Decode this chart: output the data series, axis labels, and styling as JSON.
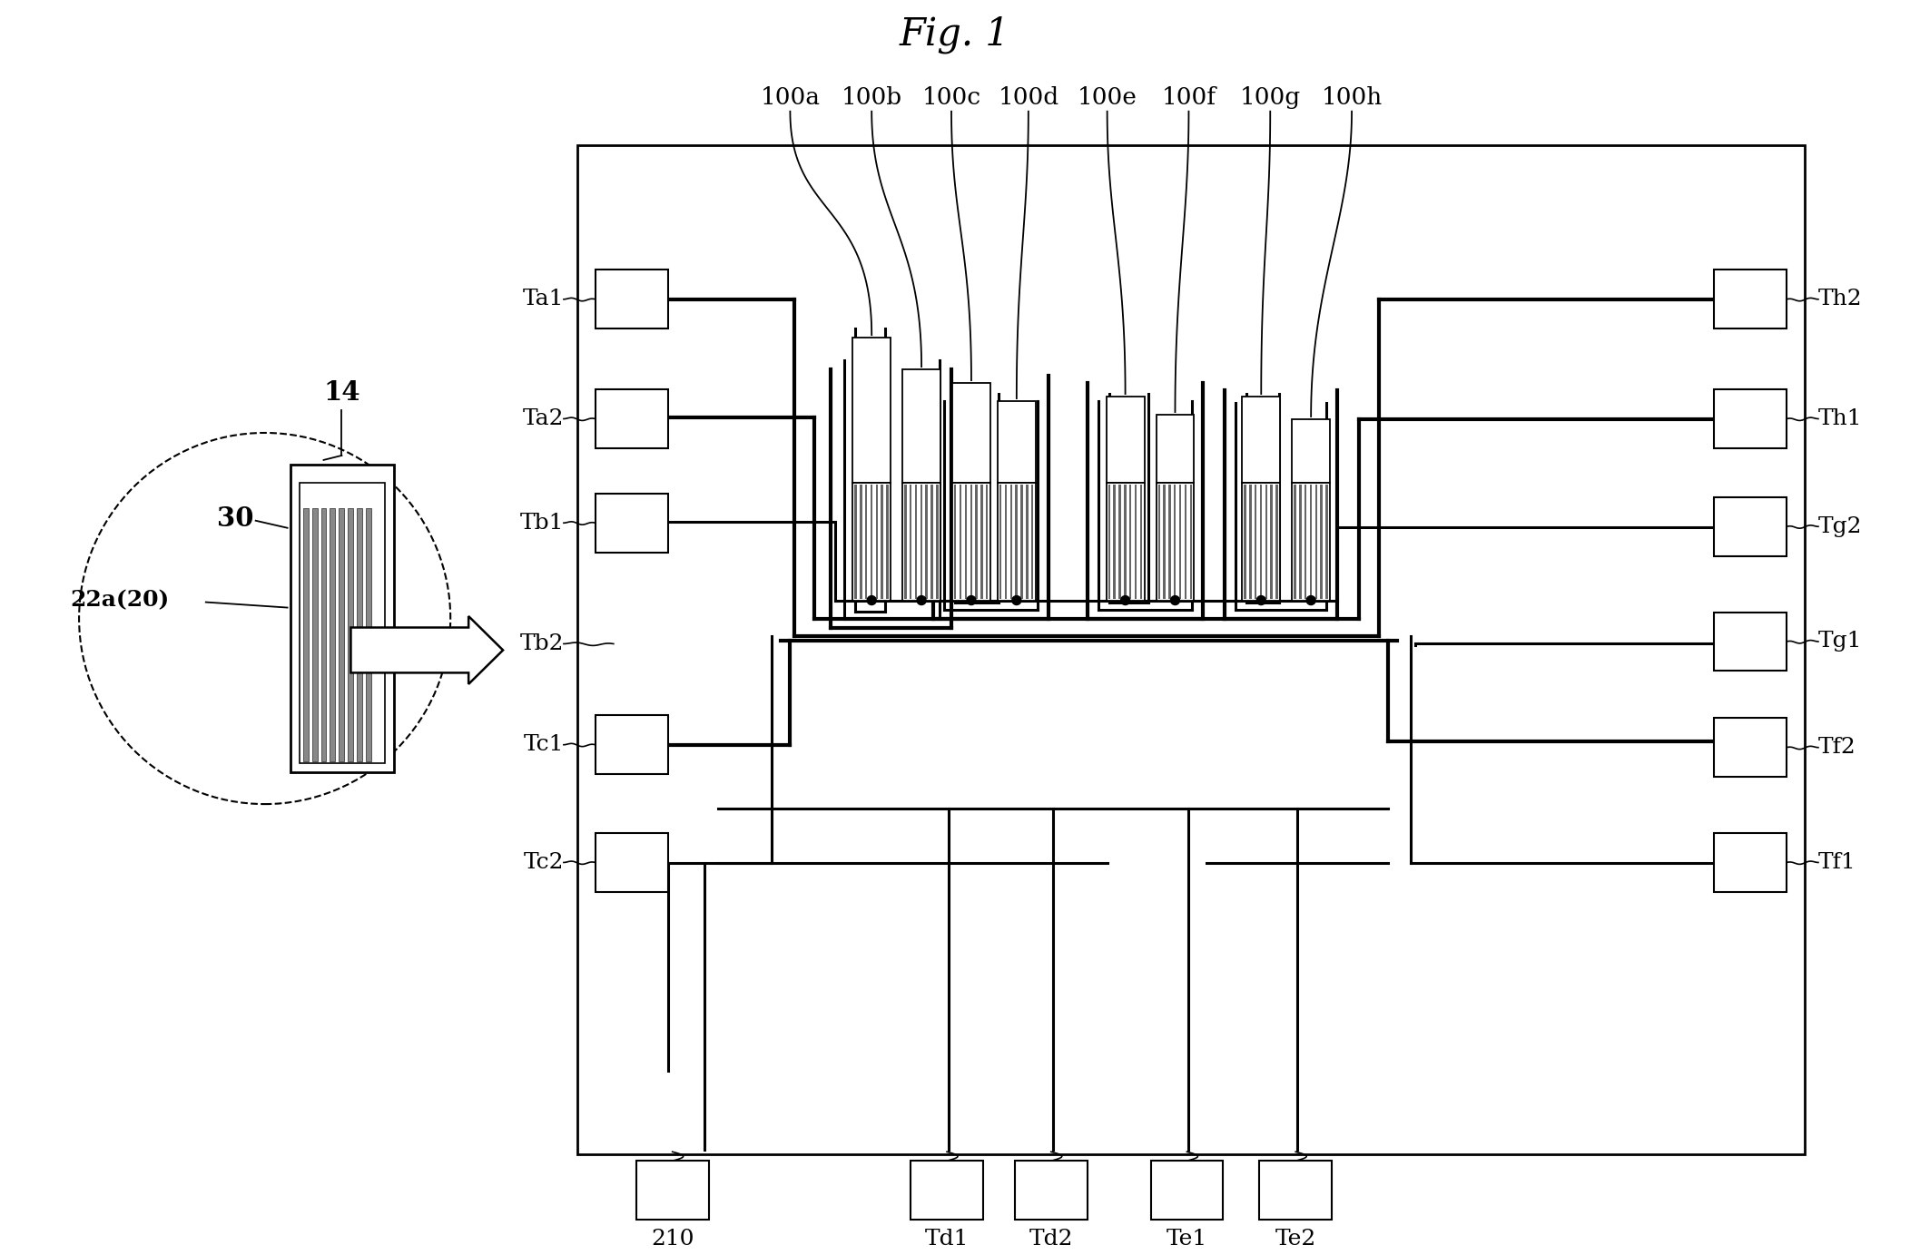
{
  "title": "Fig. 1",
  "bg_color": "#ffffff",
  "lc": "#000000",
  "fig_width": 21.04,
  "fig_height": 13.83,
  "cantilever_labels": [
    "100a",
    "100b",
    "100c",
    "100d",
    "100e",
    "100f",
    "100g",
    "100h"
  ],
  "left_labels": [
    "Ta1",
    "Ta2",
    "Tb1",
    "Tb2",
    "Tc1",
    "Tc2"
  ],
  "right_labels": [
    "Th2",
    "Th1",
    "Tg2",
    "Tg1",
    "Tf2",
    "Tf1"
  ],
  "bottom_labels": [
    "210",
    "Td1",
    "Td2",
    "Te1",
    "Te2"
  ],
  "inset_label_14": "14",
  "inset_label_30": "30",
  "inset_label_22a": "22a(20)"
}
